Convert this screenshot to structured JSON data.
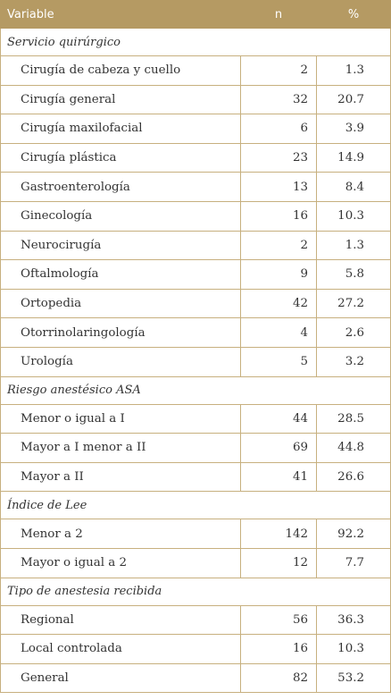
{
  "header": {
    "variable": "Variable",
    "n": "n",
    "percent": "%"
  },
  "sections": [
    {
      "title": "Servicio quirúrgico",
      "rows": [
        {
          "label": "Cirugía de cabeza y cuello",
          "n": "2",
          "pct": "1.3"
        },
        {
          "label": "Cirugía general",
          "n": "32",
          "pct": "20.7"
        },
        {
          "label": "Cirugía maxilofacial",
          "n": "6",
          "pct": "3.9"
        },
        {
          "label": "Cirugía plástica",
          "n": "23",
          "pct": "14.9"
        },
        {
          "label": "Gastroenterología",
          "n": "13",
          "pct": "8.4"
        },
        {
          "label": "Ginecología",
          "n": "16",
          "pct": "10.3"
        },
        {
          "label": "Neurocirugía",
          "n": "2",
          "pct": "1.3"
        },
        {
          "label": "Oftalmología",
          "n": "9",
          "pct": "5.8"
        },
        {
          "label": "Ortopedia",
          "n": "42",
          "pct": "27.2"
        },
        {
          "label": "Otorrinolaringología",
          "n": "4",
          "pct": "2.6"
        },
        {
          "label": "Urología",
          "n": "5",
          "pct": "3.2"
        }
      ]
    },
    {
      "title": "Riesgo anestésico ASA",
      "rows": [
        {
          "label": "Menor o igual a I",
          "n": "44",
          "pct": "28.5"
        },
        {
          "label": "Mayor a I menor a II",
          "n": "69",
          "pct": "44.8"
        },
        {
          "label": "Mayor a II",
          "n": "41",
          "pct": "26.6"
        }
      ]
    },
    {
      "title": "Índice de Lee",
      "rows": [
        {
          "label": "Menor a 2",
          "n": "142",
          "pct": "92.2"
        },
        {
          "label": "Mayor o igual a 2",
          "n": "12",
          "pct": "7.7"
        }
      ]
    },
    {
      "title": "Tipo de anestesia recibida",
      "rows": [
        {
          "label": "Regional",
          "n": "56",
          "pct": "36.3"
        },
        {
          "label": "Local controlada",
          "n": "16",
          "pct": "10.3"
        },
        {
          "label": "General",
          "n": "82",
          "pct": "53.2"
        }
      ]
    }
  ]
}
